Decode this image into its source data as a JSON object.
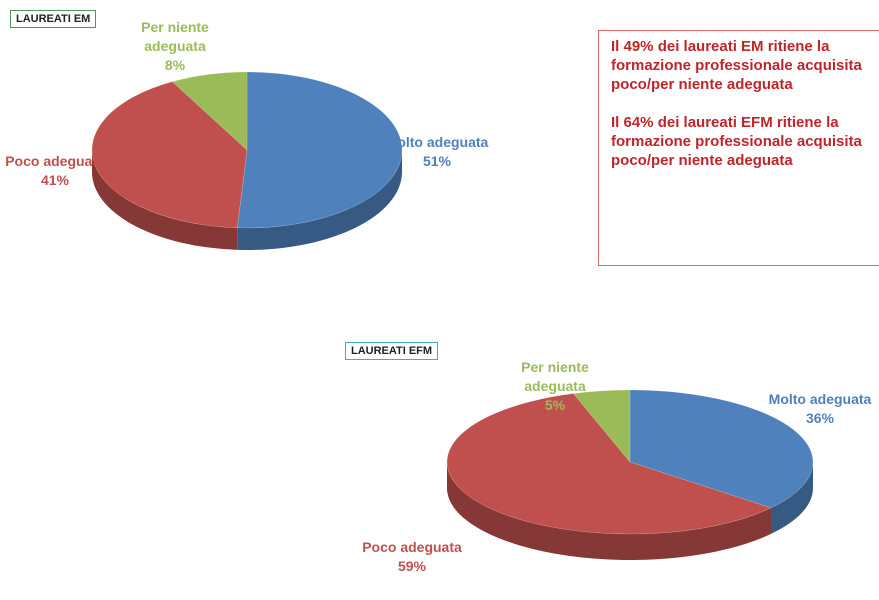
{
  "chart_data": [
    {
      "type": "pie",
      "title": "LAUREATI EM",
      "categories": [
        "Molto adeguata",
        "Poco adeguata",
        "Per niente adeguata"
      ],
      "values": [
        51,
        41,
        8
      ],
      "value_labels": [
        "51%",
        "41%",
        "8%"
      ],
      "colors": [
        "#4f81bd",
        "#c0504d",
        "#9bbb59"
      ]
    },
    {
      "type": "pie",
      "title": "LAUREATI EFM",
      "categories": [
        "Molto adeguata",
        "Poco adeguata",
        "Per niente adeguata"
      ],
      "values": [
        36,
        59,
        5
      ],
      "value_labels": [
        "36%",
        "59%",
        "5%"
      ],
      "colors": [
        "#4f81bd",
        "#c0504d",
        "#9bbb59"
      ]
    }
  ],
  "note": [
    "Il 49% dei laureati EM ritiene la formazione professionale acquisita poco/per niente adeguata",
    "Il 64% dei laureati EFM ritiene la formazione professionale acquisita poco/per niente adeguata"
  ]
}
